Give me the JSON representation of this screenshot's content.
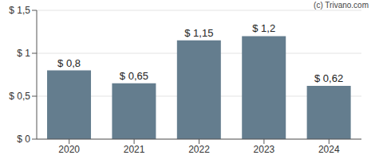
{
  "chart_data": {
    "type": "bar",
    "annotation": "(c) Trivano.com",
    "categories": [
      "2020",
      "2021",
      "2022",
      "2023",
      "2024"
    ],
    "values": [
      0.8,
      0.65,
      1.15,
      1.2,
      0.62
    ],
    "value_labels": [
      "$ 0,8",
      "$ 0,65",
      "$ 1,15",
      "$ 1,2",
      "$ 0,62"
    ],
    "color": "#647d8e",
    "ylim": [
      0,
      1.5
    ],
    "yticks": [
      {
        "value": 0,
        "label": "$ 0"
      },
      {
        "value": 0.5,
        "label": "$ 0,5"
      },
      {
        "value": 1,
        "label": "$ 1"
      },
      {
        "value": 1.5,
        "label": "$ 1,5"
      }
    ],
    "grid": true,
    "data_labels": true
  }
}
